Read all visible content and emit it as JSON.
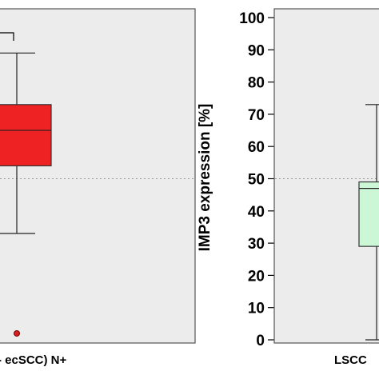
{
  "chart_data": [
    {
      "type": "box",
      "panel": "left",
      "ylim": [
        0,
        100
      ],
      "reference_line": 50,
      "grid": false,
      "categories": [
        "- ecSCC) N+"
      ],
      "boxes": [
        {
          "category": "- ecSCC) N+",
          "whisker_low": 33,
          "q1": 54,
          "median": 65,
          "q3": 73,
          "whisker_high": 89,
          "outliers": [
            2
          ],
          "color": "#ee2222"
        }
      ]
    },
    {
      "type": "box",
      "panel": "right",
      "ylabel": "IMP3 expression [%]",
      "ylim": [
        0,
        100
      ],
      "ticks": [
        0,
        10,
        20,
        30,
        40,
        50,
        60,
        70,
        80,
        90,
        100
      ],
      "reference_line": 50,
      "grid": false,
      "categories": [
        "LSCC"
      ],
      "boxes": [
        {
          "category": "LSCC",
          "whisker_low": 0,
          "q1": 29,
          "median": 47,
          "q3": 49,
          "whisker_high": 73,
          "outliers": [],
          "color": "#ccf7d6"
        }
      ]
    }
  ]
}
